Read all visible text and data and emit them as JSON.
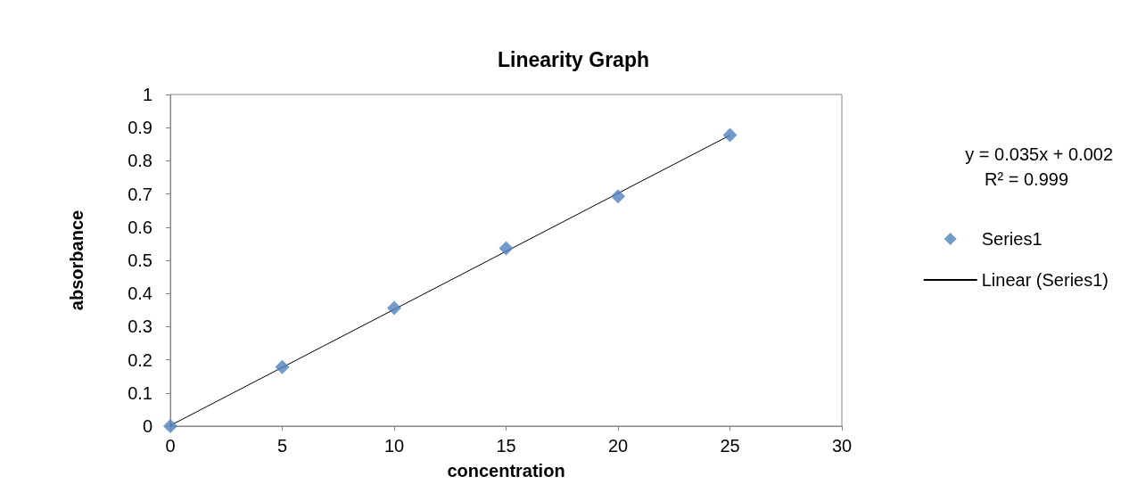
{
  "chart_data": {
    "type": "scatter",
    "title": "Linearity Graph",
    "xlabel": "concentration",
    "ylabel": "absorbance",
    "x": [
      0,
      5,
      10,
      15,
      20,
      25
    ],
    "series": [
      {
        "name": "Series1",
        "color": "#4f81bd",
        "values": [
          0,
          0.178,
          0.356,
          0.536,
          0.693,
          0.878
        ],
        "marker": "diamond"
      },
      {
        "name": "Linear (Series1)",
        "type": "line",
        "color": "#000000",
        "x": [
          0,
          25
        ],
        "values": [
          0.002,
          0.877
        ],
        "marker": "none"
      }
    ],
    "xlim": [
      0,
      30
    ],
    "xticks": [
      0,
      5,
      10,
      15,
      20,
      25,
      30
    ],
    "ylim": [
      0,
      1
    ],
    "yticks": [
      0,
      0.1,
      0.2,
      0.3,
      0.4,
      0.5,
      0.6,
      0.7,
      0.8,
      0.9,
      1
    ],
    "annotations": [
      "y = 0.035x + 0.002",
      "R² = 0.999"
    ],
    "grid": false,
    "legend": "right",
    "line_style": "solid"
  }
}
